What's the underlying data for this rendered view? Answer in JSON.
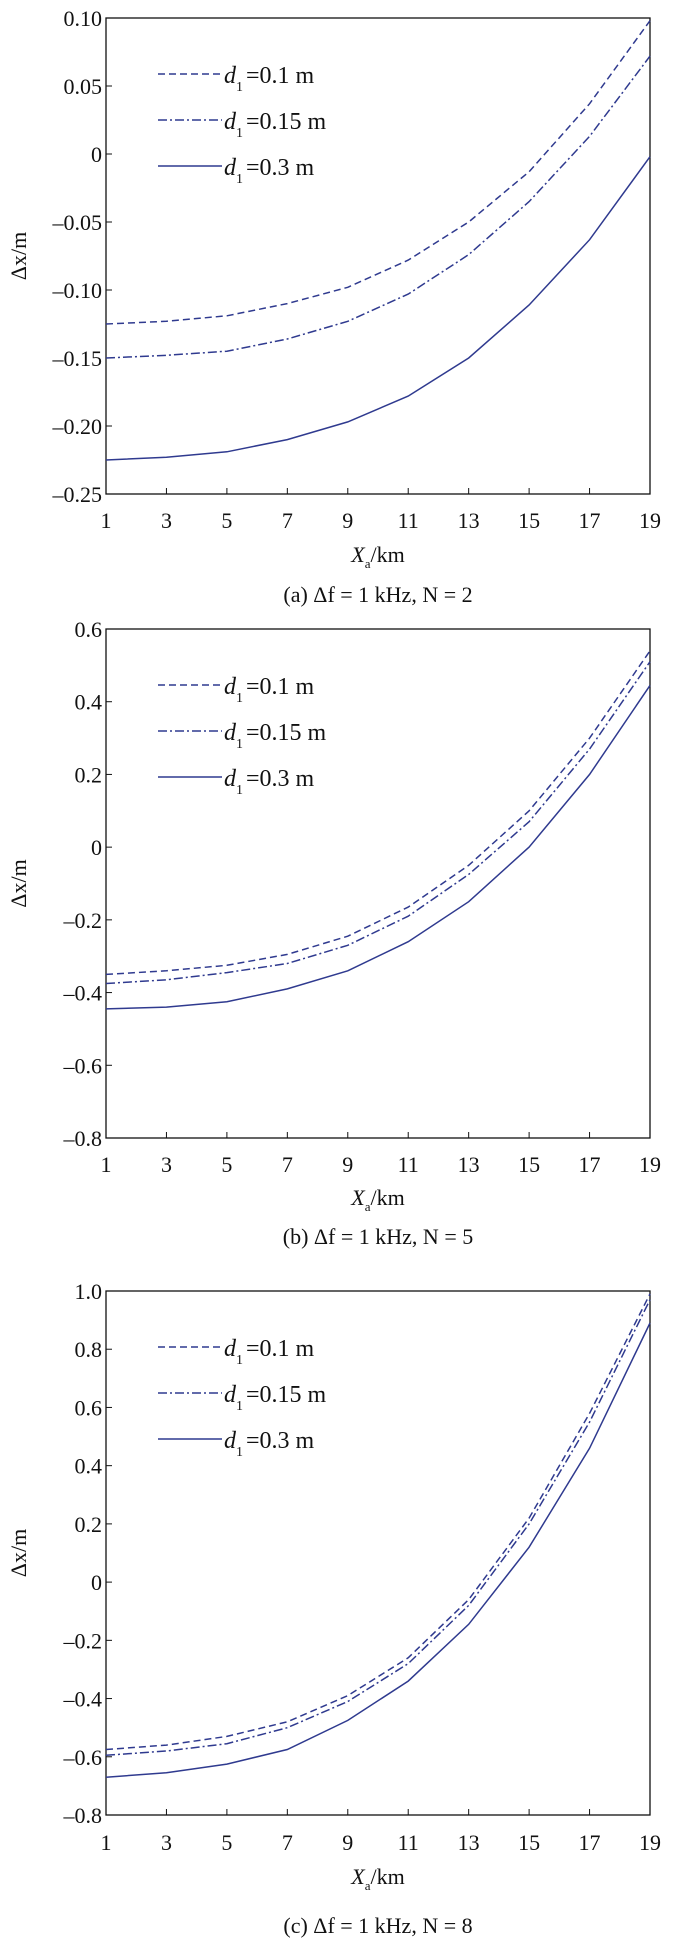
{
  "style": {
    "line_color": "#2f3a8f",
    "axis_color": "#111111"
  },
  "chart_data": [
    {
      "type": "line",
      "caption": "(a) Δf = 1 kHz, N = 2",
      "xlabel": {
        "main": "X",
        "sub": "a",
        "unit": "/km"
      },
      "ylabel": "Δx/m",
      "x": [
        1,
        3,
        5,
        7,
        9,
        11,
        13,
        15,
        17,
        19
      ],
      "xlim": [
        1,
        19
      ],
      "xticks": [
        1,
        3,
        5,
        7,
        9,
        11,
        13,
        15,
        17,
        19
      ],
      "ylim": [
        -0.25,
        0.1
      ],
      "yticks": [
        0.1,
        0.05,
        0,
        -0.05,
        -0.1,
        -0.15,
        -0.2,
        -0.25
      ],
      "ytick_labels": [
        "0.10",
        "0.05",
        "0",
        "–0.05",
        "–0.10",
        "–0.15",
        "–0.20",
        "–0.25"
      ],
      "grid": false,
      "legend_position": "top-left",
      "series": [
        {
          "name": "d1 = 0.1 m",
          "var": "d",
          "sub": "1",
          "value": "=0.1 m",
          "dash": "dashed",
          "values": [
            -0.125,
            -0.123,
            -0.119,
            -0.11,
            -0.098,
            -0.078,
            -0.05,
            -0.013,
            0.037,
            0.098
          ]
        },
        {
          "name": "d1 = 0.15 m",
          "var": "d",
          "sub": "1",
          "value": "=0.15 m",
          "dash": "dashdot",
          "values": [
            -0.15,
            -0.148,
            -0.145,
            -0.136,
            -0.123,
            -0.103,
            -0.074,
            -0.035,
            0.013,
            0.072
          ]
        },
        {
          "name": "d1 = 0.3 m",
          "var": "d",
          "sub": "1",
          "value": "=0.3 m",
          "dash": "solid",
          "values": [
            -0.225,
            -0.223,
            -0.219,
            -0.21,
            -0.197,
            -0.178,
            -0.15,
            -0.111,
            -0.063,
            -0.002
          ]
        }
      ]
    },
    {
      "type": "line",
      "caption": "(b) Δf = 1 kHz, N = 5",
      "xlabel": {
        "main": "X",
        "sub": "a",
        "unit": "/km"
      },
      "ylabel": "Δx/m",
      "x": [
        1,
        3,
        5,
        7,
        9,
        11,
        13,
        15,
        17,
        19
      ],
      "xlim": [
        1,
        19
      ],
      "xticks": [
        1,
        3,
        5,
        7,
        9,
        11,
        13,
        15,
        17,
        19
      ],
      "ylim": [
        -0.8,
        0.6
      ],
      "yticks": [
        0.6,
        0.4,
        0.2,
        0,
        -0.2,
        -0.4,
        -0.6,
        -0.8
      ],
      "ytick_labels": [
        "0.6",
        "0.4",
        "0.2",
        "0",
        "–0.2",
        "–0.4",
        "–0.6",
        "–0.8"
      ],
      "grid": false,
      "legend_position": "top-left",
      "series": [
        {
          "name": "d1 = 0.1 m",
          "var": "d",
          "sub": "1",
          "value": "=0.1 m",
          "dash": "dashed",
          "values": [
            -0.35,
            -0.34,
            -0.325,
            -0.295,
            -0.245,
            -0.165,
            -0.05,
            0.1,
            0.3,
            0.54
          ]
        },
        {
          "name": "d1 = 0.15 m",
          "var": "d",
          "sub": "1",
          "value": "=0.15 m",
          "dash": "dashdot",
          "values": [
            -0.375,
            -0.365,
            -0.345,
            -0.32,
            -0.27,
            -0.19,
            -0.075,
            0.07,
            0.27,
            0.51
          ]
        },
        {
          "name": "d1 = 0.3 m",
          "var": "d",
          "sub": "1",
          "value": "=0.3 m",
          "dash": "solid",
          "values": [
            -0.445,
            -0.44,
            -0.425,
            -0.39,
            -0.34,
            -0.26,
            -0.15,
            0.0,
            0.2,
            0.445
          ]
        }
      ]
    },
    {
      "type": "line",
      "caption": "(c) Δf = 1 kHz, N = 8",
      "xlabel": {
        "main": "X",
        "sub": "a",
        "unit": "/km"
      },
      "ylabel": "Δx/m",
      "x": [
        1,
        3,
        5,
        7,
        9,
        11,
        13,
        15,
        17,
        19
      ],
      "xlim": [
        1,
        19
      ],
      "xticks": [
        1,
        3,
        5,
        7,
        9,
        11,
        13,
        15,
        17,
        19
      ],
      "ylim": [
        -0.8,
        1.0
      ],
      "yticks": [
        1.0,
        0.8,
        0.6,
        0.4,
        0.2,
        0,
        -0.2,
        -0.4,
        -0.6,
        -0.8
      ],
      "ytick_labels": [
        "1.0",
        "0.8",
        "0.6",
        "0.4",
        "0.2",
        "0",
        "–0.2",
        "–0.4",
        "–0.6",
        "–0.8"
      ],
      "grid": false,
      "legend_position": "top-left",
      "series": [
        {
          "name": "d1 = 0.1 m",
          "var": "d",
          "sub": "1",
          "value": "=0.1 m",
          "dash": "dashed",
          "values": [
            -0.575,
            -0.56,
            -0.53,
            -0.48,
            -0.39,
            -0.26,
            -0.06,
            0.22,
            0.58,
            0.99
          ]
        },
        {
          "name": "d1 = 0.15 m",
          "var": "d",
          "sub": "1",
          "value": "=0.15 m",
          "dash": "dashdot",
          "values": [
            -0.595,
            -0.58,
            -0.555,
            -0.5,
            -0.41,
            -0.28,
            -0.08,
            0.2,
            0.55,
            0.97
          ]
        },
        {
          "name": "d1 = 0.3 m",
          "var": "d",
          "sub": "1",
          "value": "=0.3 m",
          "dash": "solid",
          "values": [
            -0.67,
            -0.655,
            -0.625,
            -0.575,
            -0.475,
            -0.34,
            -0.145,
            0.12,
            0.46,
            0.89
          ]
        }
      ]
    }
  ]
}
